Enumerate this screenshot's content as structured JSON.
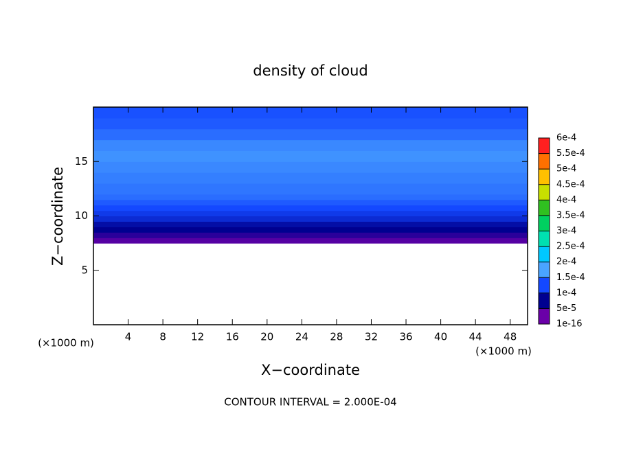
{
  "chart_data": {
    "type": "contour",
    "title": "density of cloud",
    "xlabel": "X−coordinate",
    "ylabel": "Z−coordinate",
    "xunit": "(×1000 m)",
    "yunit": "(×1000 m)",
    "footnote": "CONTOUR INTERVAL = 2.000E-04",
    "xlim": [
      0,
      50
    ],
    "xticks": [
      4,
      8,
      12,
      16,
      20,
      24,
      28,
      32,
      36,
      40,
      44,
      48
    ],
    "ylim": [
      0,
      20
    ],
    "yticks": [
      5,
      10,
      15
    ],
    "z_edges": [
      7.5,
      8,
      8.5,
      9,
      9.5,
      10,
      10.5,
      11,
      11.5,
      12,
      13,
      14,
      15,
      16,
      17,
      18,
      19,
      20
    ],
    "values": [
      1e-05,
      3e-05,
      5e-05,
      6e-05,
      8e-05,
      9e-05,
      0.0001,
      0.00011,
      0.00012,
      0.000125,
      0.00013,
      0.000135,
      0.00014,
      0.000135,
      0.00012,
      0.00011,
      0.000105
    ],
    "colorbar_ticks": [
      {
        "value": 1e-16,
        "label": "1e-16"
      },
      {
        "value": 5e-05,
        "label": "5e-5"
      },
      {
        "value": 0.0001,
        "label": "1e-4"
      },
      {
        "value": 0.00015,
        "label": "1.5e-4"
      },
      {
        "value": 0.0002,
        "label": "2e-4"
      },
      {
        "value": 0.00025,
        "label": "2.5e-4"
      },
      {
        "value": 0.0003,
        "label": "3e-4"
      },
      {
        "value": 0.00035,
        "label": "3.5e-4"
      },
      {
        "value": 0.0004,
        "label": "4e-4"
      },
      {
        "value": 0.00045,
        "label": "4.5e-4"
      },
      {
        "value": 0.0005,
        "label": "5e-4"
      },
      {
        "value": 0.00055,
        "label": "5.5e-4"
      },
      {
        "value": 0.0006,
        "label": "6e-4"
      }
    ],
    "colorbar_colors": [
      "#6a00a8",
      "#000090",
      "#1448ff",
      "#4aa4ff",
      "#00c8ff",
      "#00e0b0",
      "#00d060",
      "#30c020",
      "#c8e000",
      "#ffc000",
      "#ff7000",
      "#ff2020",
      "#ff9090"
    ]
  }
}
